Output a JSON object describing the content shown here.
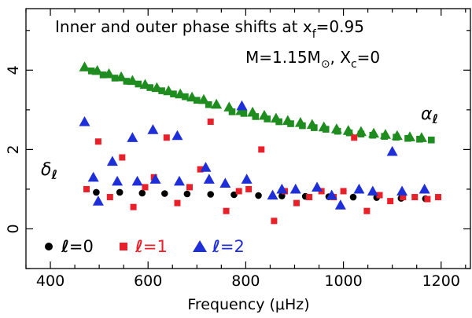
{
  "chart_data": {
    "type": "scatter",
    "title": "Inner and outer phase shifts at x",
    "title_sub": "f",
    "title_suffix": "=0.95",
    "model": {
      "mass_prefix": "M=1.15M",
      "mass_symbol": "⊙",
      "sep": ", X",
      "xc_sub": "c",
      "xc_val": "=0"
    },
    "xlabel": "Frequency (μHz)",
    "xlim": [
      350,
      1260
    ],
    "ylim": [
      -1.0,
      5.55
    ],
    "xticks": [
      400,
      600,
      800,
      1000,
      1200
    ],
    "yticks": [
      0,
      2,
      4
    ],
    "annotations": {
      "alpha": "α",
      "delta": "δ",
      "ell": "ℓ"
    },
    "legend": [
      {
        "marker": "circle",
        "color": "#000000",
        "label": "=0"
      },
      {
        "marker": "square",
        "color": "#e8202a",
        "label": "=1"
      },
      {
        "marker": "triangle",
        "color": "#1f2fd8",
        "label": "=2"
      }
    ],
    "series": [
      {
        "name": "alpha_l=0",
        "quantity": "alpha",
        "marker": "square",
        "color": "#1f8c1f",
        "x": [
          484,
          508,
          532,
          556,
          580,
          604,
          628,
          652,
          676,
          700,
          724,
          772,
          796,
          820,
          844,
          868,
          892,
          916,
          940,
          964,
          988,
          1012,
          1036,
          1060,
          1084,
          1108,
          1132,
          1156,
          1180
        ],
        "y": [
          3.98,
          3.88,
          3.8,
          3.72,
          3.65,
          3.56,
          3.48,
          3.4,
          3.33,
          3.24,
          3.13,
          2.95,
          2.91,
          2.83,
          2.77,
          2.7,
          2.65,
          2.6,
          2.55,
          2.51,
          2.46,
          2.42,
          2.39,
          2.36,
          2.33,
          2.31,
          2.28,
          2.26,
          2.24
        ]
      },
      {
        "name": "alpha_l=1",
        "quantity": "alpha",
        "marker": "triangle",
        "color": "#1f8c1f",
        "x": [
          470,
          496,
          520,
          545,
          568,
          594,
          618,
          642,
          666,
          690,
          714,
          740,
          766,
          790,
          814,
          838,
          862,
          886,
          912,
          936,
          960,
          986,
          1010,
          1036,
          1062,
          1086,
          1110,
          1136,
          1160
        ],
        "y": [
          4.08,
          3.99,
          3.91,
          3.83,
          3.74,
          3.64,
          3.56,
          3.48,
          3.4,
          3.32,
          3.26,
          3.14,
          3.07,
          2.98,
          2.94,
          2.86,
          2.79,
          2.73,
          2.68,
          2.63,
          2.57,
          2.52,
          2.48,
          2.45,
          2.41,
          2.38,
          2.35,
          2.32,
          2.3
        ]
      },
      {
        "name": "delta_l=0",
        "quantity": "delta",
        "marker": "circle",
        "color": "#000000",
        "x": [
          494,
          542,
          588,
          634,
          680,
          728,
          776,
          826,
          874,
          922,
          970,
          1020,
          1068,
          1118,
          1168
        ],
        "y": [
          0.92,
          0.92,
          0.9,
          0.89,
          0.88,
          0.87,
          0.86,
          0.84,
          0.83,
          0.82,
          0.81,
          0.8,
          0.79,
          0.77,
          0.76
        ]
      },
      {
        "name": "delta_l=1",
        "quantity": "delta",
        "marker": "square",
        "color": "#e8202a",
        "x": [
          474,
          498,
          522,
          547,
          570,
          594,
          612,
          638,
          660,
          685,
          707,
          728,
          760,
          786,
          806,
          832,
          858,
          880,
          904,
          930,
          955,
          980,
          1000,
          1022,
          1048,
          1074,
          1096,
          1122,
          1146,
          1172,
          1194
        ],
        "y": [
          1.0,
          2.2,
          0.8,
          1.8,
          0.55,
          1.05,
          1.3,
          2.3,
          0.65,
          1.05,
          1.5,
          2.7,
          0.45,
          0.95,
          1.0,
          2.0,
          0.2,
          0.95,
          0.65,
          0.8,
          0.95,
          0.8,
          0.95,
          2.3,
          0.45,
          0.85,
          0.7,
          0.8,
          0.8,
          0.75,
          0.8
        ]
      },
      {
        "name": "delta_l=2",
        "quantity": "delta",
        "marker": "triangle",
        "color": "#1f2fd8",
        "x": [
          470,
          488,
          498,
          527,
          537,
          568,
          578,
          610,
          615,
          660,
          664,
          718,
          725,
          758,
          792,
          802,
          855,
          874,
          902,
          946,
          976,
          994,
          1032,
          1060,
          1100,
          1120,
          1166
        ],
        "y": [
          2.7,
          1.3,
          0.7,
          1.7,
          1.2,
          2.3,
          1.2,
          2.5,
          1.25,
          2.35,
          1.2,
          1.55,
          1.25,
          1.15,
          3.1,
          1.25,
          0.85,
          1.0,
          1.0,
          1.05,
          0.85,
          0.6,
          1.0,
          0.95,
          1.95,
          0.95,
          1.0
        ]
      }
    ]
  }
}
